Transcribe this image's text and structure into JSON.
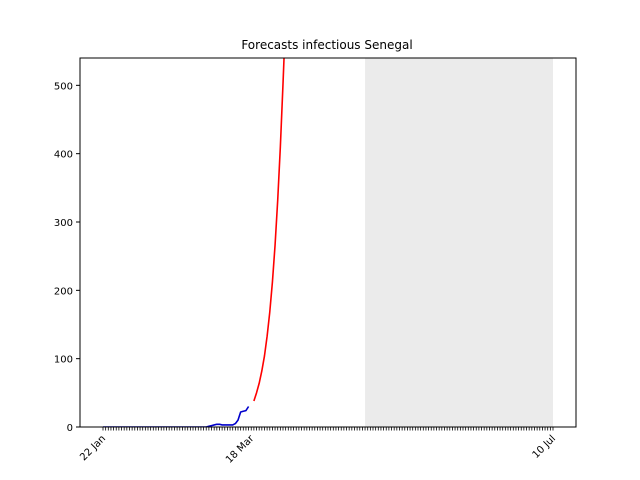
{
  "chart_data": {
    "type": "line",
    "title": "Forecasts infectious Senegal",
    "xlabel": "",
    "ylabel": "",
    "x_axis": {
      "start": "2020-01-22",
      "end": "2020-07-10",
      "labeled_ticks": [
        "22 Jan",
        "18 Mar",
        "10 Jul"
      ],
      "labeled_tick_dates": [
        "2020-01-22",
        "2020-03-18",
        "2020-07-10"
      ],
      "minor_ticks": "daily"
    },
    "y_axis": {
      "ylim": [
        0,
        540
      ],
      "ticks": [
        0,
        100,
        200,
        300,
        400,
        500
      ]
    },
    "grid": false,
    "shaded_region": {
      "start": "2020-04-30",
      "end": "2020-07-10",
      "color": "#ebebeb"
    },
    "series": [
      {
        "color": "#0000cc",
        "points": [
          [
            "2020-01-22",
            0
          ],
          [
            "2020-02-27",
            0
          ],
          [
            "2020-03-01",
            0
          ],
          [
            "2020-03-02",
            1
          ],
          [
            "2020-03-03",
            2
          ],
          [
            "2020-03-04",
            3
          ],
          [
            "2020-03-05",
            4
          ],
          [
            "2020-03-06",
            4
          ],
          [
            "2020-03-07",
            3
          ],
          [
            "2020-03-08",
            3
          ],
          [
            "2020-03-09",
            3
          ],
          [
            "2020-03-10",
            3
          ],
          [
            "2020-03-11",
            3
          ],
          [
            "2020-03-12",
            5
          ],
          [
            "2020-03-13",
            10
          ],
          [
            "2020-03-14",
            22
          ],
          [
            "2020-03-15",
            23
          ],
          [
            "2020-03-16",
            24
          ],
          [
            "2020-03-17",
            30
          ]
        ]
      },
      {
        "color": "#ff0000",
        "points": [
          [
            "2020-03-19",
            38
          ],
          [
            "2020-03-20",
            50
          ],
          [
            "2020-03-21",
            64
          ],
          [
            "2020-03-22",
            82
          ],
          [
            "2020-03-23",
            104
          ],
          [
            "2020-03-24",
            133
          ],
          [
            "2020-03-25",
            168
          ],
          [
            "2020-03-26",
            212
          ],
          [
            "2020-03-27",
            266
          ],
          [
            "2020-03-28",
            332
          ],
          [
            "2020-03-29",
            410
          ],
          [
            "2020-03-30",
            502
          ],
          [
            "2020-03-31",
            600
          ]
        ]
      }
    ]
  }
}
